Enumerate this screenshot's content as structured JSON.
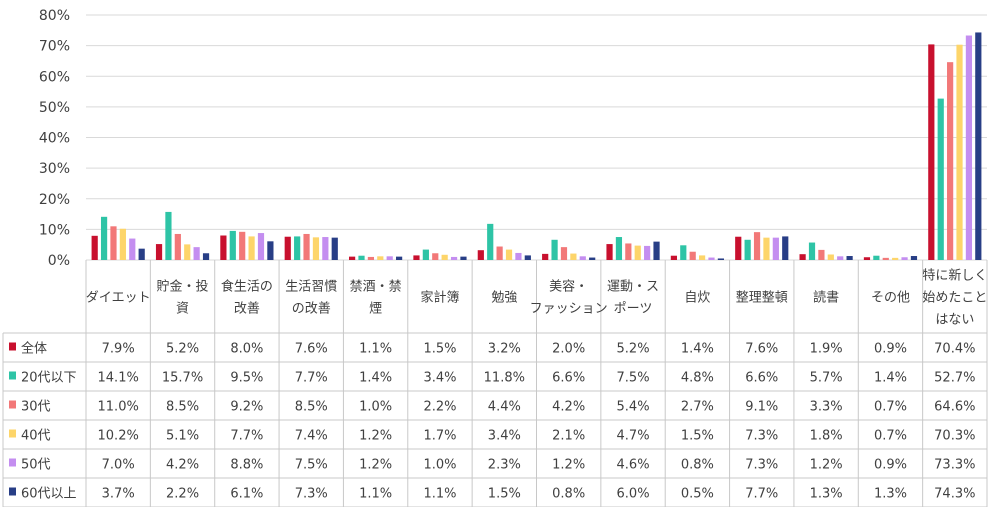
{
  "chart_data": {
    "type": "bar",
    "categories": [
      [
        "ダイエット"
      ],
      [
        "貯金・投",
        "資"
      ],
      [
        "食生活の",
        "改善"
      ],
      [
        "生活習慣",
        "の改善"
      ],
      [
        "禁酒・禁",
        "煙"
      ],
      [
        "家計簿"
      ],
      [
        "勉強"
      ],
      [
        "美容・",
        "ファッション"
      ],
      [
        "運動・ス",
        "ポーツ"
      ],
      [
        "自炊"
      ],
      [
        "整理整頓"
      ],
      [
        "読書"
      ],
      [
        "その他"
      ],
      [
        "特に新しく",
        "始めたこと",
        "はない"
      ]
    ],
    "series": [
      {
        "name": "全体",
        "color": "#c8102e",
        "values": [
          7.9,
          5.2,
          8.0,
          7.6,
          1.1,
          1.5,
          3.2,
          2.0,
          5.2,
          1.4,
          7.6,
          1.9,
          0.9,
          70.4
        ],
        "labels": [
          "7.9%",
          "5.2%",
          "8.0%",
          "7.6%",
          "1.1%",
          "1.5%",
          "3.2%",
          "2.0%",
          "5.2%",
          "1.4%",
          "7.6%",
          "1.9%",
          "0.9%",
          "70.4%"
        ]
      },
      {
        "name": "20代以下",
        "color": "#2ec4a6",
        "values": [
          14.1,
          15.7,
          9.5,
          7.7,
          1.4,
          3.4,
          11.8,
          6.6,
          7.5,
          4.8,
          6.6,
          5.7,
          1.4,
          52.7
        ],
        "labels": [
          "14.1%",
          "15.7%",
          "9.5%",
          "7.7%",
          "1.4%",
          "3.4%",
          "11.8%",
          "6.6%",
          "7.5%",
          "4.8%",
          "6.6%",
          "5.7%",
          "1.4%",
          "52.7%"
        ]
      },
      {
        "name": "30代",
        "color": "#f27878",
        "values": [
          11.0,
          8.5,
          9.2,
          8.5,
          1.0,
          2.2,
          4.4,
          4.2,
          5.4,
          2.7,
          9.1,
          3.3,
          0.7,
          64.6
        ],
        "labels": [
          "11.0%",
          "8.5%",
          "9.2%",
          "8.5%",
          "1.0%",
          "2.2%",
          "4.4%",
          "4.2%",
          "5.4%",
          "2.7%",
          "9.1%",
          "3.3%",
          "0.7%",
          "64.6%"
        ]
      },
      {
        "name": "40代",
        "color": "#fdd56a",
        "values": [
          10.2,
          5.1,
          7.7,
          7.4,
          1.2,
          1.7,
          3.4,
          2.1,
          4.7,
          1.5,
          7.3,
          1.8,
          0.7,
          70.3
        ],
        "labels": [
          "10.2%",
          "5.1%",
          "7.7%",
          "7.4%",
          "1.2%",
          "1.7%",
          "3.4%",
          "2.1%",
          "4.7%",
          "1.5%",
          "7.3%",
          "1.8%",
          "0.7%",
          "70.3%"
        ]
      },
      {
        "name": "50代",
        "color": "#c48ef0",
        "values": [
          7.0,
          4.2,
          8.8,
          7.5,
          1.2,
          1.0,
          2.3,
          1.2,
          4.6,
          0.8,
          7.3,
          1.2,
          0.9,
          73.3
        ],
        "labels": [
          "7.0%",
          "4.2%",
          "8.8%",
          "7.5%",
          "1.2%",
          "1.0%",
          "2.3%",
          "1.2%",
          "4.6%",
          "0.8%",
          "7.3%",
          "1.2%",
          "0.9%",
          "73.3%"
        ]
      },
      {
        "name": "60代以上",
        "color": "#283e86",
        "values": [
          3.7,
          2.2,
          6.1,
          7.3,
          1.1,
          1.1,
          1.5,
          0.8,
          6.0,
          0.5,
          7.7,
          1.3,
          1.3,
          74.3
        ],
        "labels": [
          "3.7%",
          "2.2%",
          "6.1%",
          "7.3%",
          "1.1%",
          "1.1%",
          "1.5%",
          "0.8%",
          "6.0%",
          "0.5%",
          "7.7%",
          "1.3%",
          "1.3%",
          "74.3%"
        ]
      }
    ],
    "yticks": [
      "0%",
      "10%",
      "20%",
      "30%",
      "40%",
      "50%",
      "60%",
      "70%",
      "80%"
    ],
    "ylim": [
      0,
      80
    ],
    "grid": true,
    "gridColor": "#d9d9d9",
    "tableBorderColor": "#c8c8c8"
  }
}
